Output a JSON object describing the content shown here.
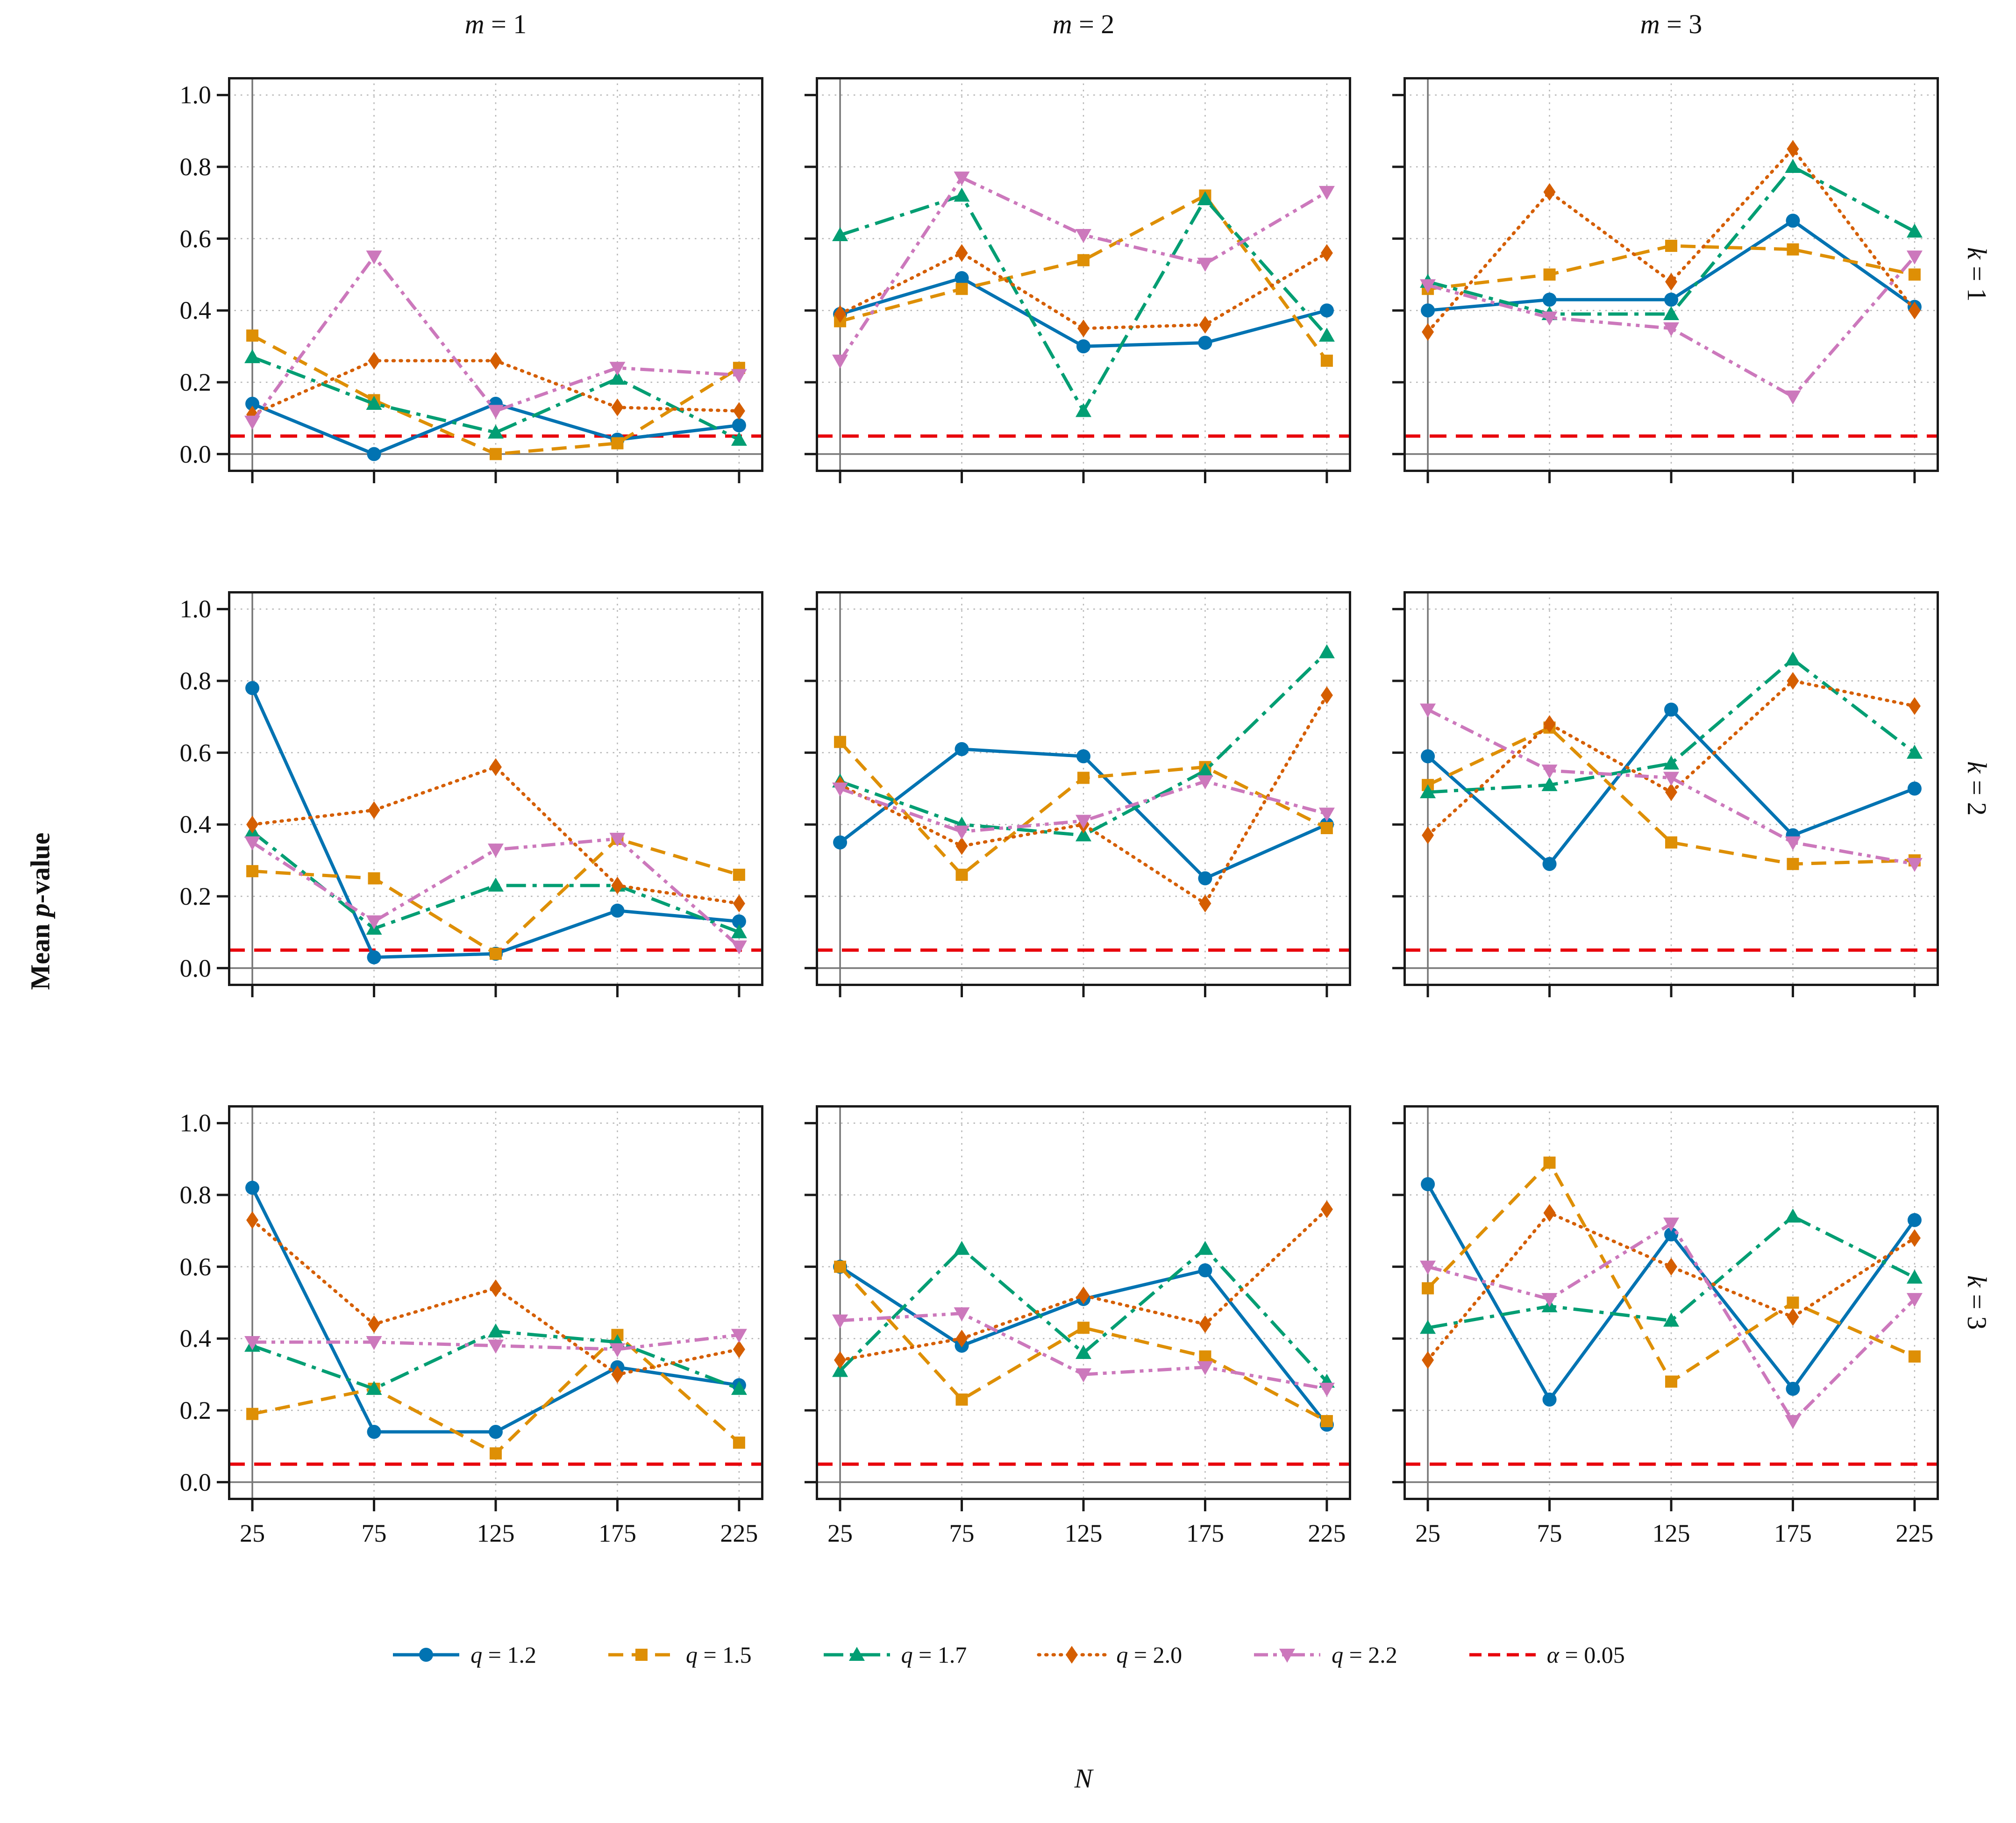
{
  "chart_data": {
    "type": "line",
    "layout": "3x3 grid of subplots; columns share x axis, rows share y axis",
    "x": [
      25,
      75,
      125,
      175,
      225
    ],
    "xticklabels": [
      "25",
      "75",
      "125",
      "175",
      "225"
    ],
    "xlabel": "N",
    "ylabel": "Mean p-value",
    "ylim": [
      -0.05,
      1.05
    ],
    "yticks": [
      0.0,
      0.2,
      0.4,
      0.6,
      0.8,
      1.0
    ],
    "yticklabels": [
      "0.0",
      "0.2",
      "0.4",
      "0.6",
      "0.8",
      "1.0"
    ],
    "grid": "dotted gray gridlines on; solid gray axis line at y=0 and x=25",
    "legend_position": "bottom center, horizontal",
    "col_titles": [
      "m = 1",
      "m = 2",
      "m = 3"
    ],
    "row_titles": [
      "k = 1",
      "k = 2",
      "k = 3"
    ],
    "alpha_line": {
      "label": "α = 0.05",
      "value": 0.05,
      "color": "#e8000b",
      "line": "dashed"
    },
    "series_meta": [
      {
        "key": "q1.2",
        "label": "q = 1.2",
        "color": "#0173b2",
        "marker": "circle",
        "line": "solid"
      },
      {
        "key": "q1.5",
        "label": "q = 1.5",
        "color": "#de8f05",
        "marker": "square",
        "line": "dashed"
      },
      {
        "key": "q1.7",
        "label": "q = 1.7",
        "color": "#029e73",
        "marker": "triangle-up",
        "line": "dashdot"
      },
      {
        "key": "q2.0",
        "label": "q = 2.0",
        "color": "#d55e00",
        "marker": "diamond",
        "line": "dotted"
      },
      {
        "key": "q2.2",
        "label": "q = 2.2",
        "color": "#cc78bc",
        "marker": "triangle-down",
        "line": "dashdotdot"
      }
    ],
    "subplots": [
      {
        "k": "k = 1",
        "m": "m = 1",
        "series": {
          "q1.2": [
            0.14,
            0.0,
            0.14,
            0.04,
            0.08
          ],
          "q1.5": [
            0.33,
            0.15,
            0.0,
            0.03,
            0.24
          ],
          "q1.7": [
            0.27,
            0.14,
            0.06,
            0.21,
            0.04
          ],
          "q2.0": [
            0.11,
            0.26,
            0.26,
            0.13,
            0.12
          ],
          "q2.2": [
            0.09,
            0.55,
            0.12,
            0.24,
            0.22
          ]
        }
      },
      {
        "k": "k = 1",
        "m": "m = 2",
        "series": {
          "q1.2": [
            0.39,
            0.49,
            0.3,
            0.31,
            0.4
          ],
          "q1.5": [
            0.37,
            0.46,
            0.54,
            0.72,
            0.26
          ],
          "q1.7": [
            0.61,
            0.72,
            0.12,
            0.71,
            0.33
          ],
          "q2.0": [
            0.39,
            0.56,
            0.35,
            0.36,
            0.56
          ],
          "q2.2": [
            0.26,
            0.77,
            0.61,
            0.53,
            0.73
          ]
        }
      },
      {
        "k": "k = 1",
        "m": "m = 3",
        "series": {
          "q1.2": [
            0.4,
            0.43,
            0.43,
            0.65,
            0.41
          ],
          "q1.5": [
            0.46,
            0.5,
            0.58,
            0.57,
            0.5
          ],
          "q1.7": [
            0.48,
            0.39,
            0.39,
            0.8,
            0.62
          ],
          "q2.0": [
            0.34,
            0.73,
            0.48,
            0.85,
            0.4
          ],
          "q2.2": [
            0.47,
            0.38,
            0.35,
            0.16,
            0.55
          ]
        }
      },
      {
        "k": "k = 2",
        "m": "m = 1",
        "series": {
          "q1.2": [
            0.78,
            0.03,
            0.04,
            0.16,
            0.13
          ],
          "q1.5": [
            0.27,
            0.25,
            0.04,
            0.36,
            0.26
          ],
          "q1.7": [
            0.38,
            0.11,
            0.23,
            0.23,
            0.1
          ],
          "q2.0": [
            0.4,
            0.44,
            0.56,
            0.23,
            0.18
          ],
          "q2.2": [
            0.35,
            0.13,
            0.33,
            0.36,
            0.06
          ]
        }
      },
      {
        "k": "k = 2",
        "m": "m = 2",
        "series": {
          "q1.2": [
            0.35,
            0.61,
            0.59,
            0.25,
            0.4
          ],
          "q1.5": [
            0.63,
            0.26,
            0.53,
            0.56,
            0.39
          ],
          "q1.7": [
            0.52,
            0.4,
            0.37,
            0.55,
            0.88
          ],
          "q2.0": [
            0.51,
            0.34,
            0.4,
            0.18,
            0.76
          ],
          "q2.2": [
            0.5,
            0.38,
            0.41,
            0.52,
            0.43
          ]
        }
      },
      {
        "k": "k = 2",
        "m": "m = 3",
        "series": {
          "q1.2": [
            0.59,
            0.29,
            0.72,
            0.37,
            0.5
          ],
          "q1.5": [
            0.51,
            0.67,
            0.35,
            0.29,
            0.3
          ],
          "q1.7": [
            0.49,
            0.51,
            0.57,
            0.86,
            0.6
          ],
          "q2.0": [
            0.37,
            0.68,
            0.49,
            0.8,
            0.73
          ],
          "q2.2": [
            0.72,
            0.55,
            0.53,
            0.35,
            0.29
          ]
        }
      },
      {
        "k": "k = 3",
        "m": "m = 1",
        "series": {
          "q1.2": [
            0.82,
            0.14,
            0.14,
            0.32,
            0.27
          ],
          "q1.5": [
            0.19,
            0.26,
            0.08,
            0.41,
            0.11
          ],
          "q1.7": [
            0.38,
            0.26,
            0.42,
            0.39,
            0.26
          ],
          "q2.0": [
            0.73,
            0.44,
            0.54,
            0.3,
            0.37
          ],
          "q2.2": [
            0.39,
            0.39,
            0.38,
            0.37,
            0.41
          ]
        }
      },
      {
        "k": "k = 3",
        "m": "m = 2",
        "series": {
          "q1.2": [
            0.6,
            0.38,
            0.51,
            0.59,
            0.16
          ],
          "q1.5": [
            0.6,
            0.23,
            0.43,
            0.35,
            0.17
          ],
          "q1.7": [
            0.31,
            0.65,
            0.36,
            0.65,
            0.28
          ],
          "q2.0": [
            0.34,
            0.4,
            0.52,
            0.44,
            0.76
          ],
          "q2.2": [
            0.45,
            0.47,
            0.3,
            0.32,
            0.26
          ]
        }
      },
      {
        "k": "k = 3",
        "m": "m = 3",
        "series": {
          "q1.2": [
            0.83,
            0.23,
            0.69,
            0.26,
            0.73
          ],
          "q1.5": [
            0.54,
            0.89,
            0.28,
            0.5,
            0.35
          ],
          "q1.7": [
            0.43,
            0.49,
            0.45,
            0.74,
            0.57
          ],
          "q2.0": [
            0.34,
            0.75,
            0.6,
            0.46,
            0.68
          ],
          "q2.2": [
            0.6,
            0.51,
            0.72,
            0.17,
            0.51
          ]
        }
      }
    ],
    "style": {
      "background": "#ffffff",
      "spine_color": "#1a1a1a",
      "grid_color": "#b5b5b5",
      "zero_line_color": "#777777",
      "tick_color": "#1a1a1a"
    }
  }
}
